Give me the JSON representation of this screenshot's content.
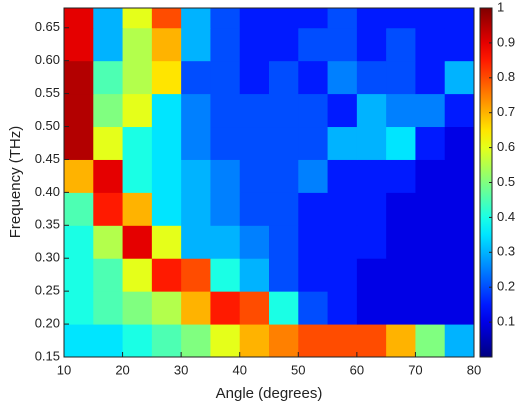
{
  "chart_data": {
    "type": "heatmap",
    "xlabel": "Angle (degrees)",
    "ylabel": "Frequency (THz)",
    "xbins": [
      10,
      15,
      20,
      25,
      30,
      35,
      40,
      45,
      50,
      55,
      60,
      65,
      70,
      75,
      80
    ],
    "ybins": [
      0.15,
      0.2,
      0.25,
      0.3,
      0.35,
      0.4,
      0.45,
      0.5,
      0.55,
      0.6,
      0.65,
      0.68
    ],
    "z": [
      [
        0.35,
        0.35,
        0.4,
        0.45,
        0.5,
        0.6,
        0.7,
        0.75,
        0.8,
        0.8,
        0.8,
        0.7,
        0.5,
        0.3
      ],
      [
        0.4,
        0.45,
        0.5,
        0.55,
        0.7,
        0.85,
        0.8,
        0.4,
        0.2,
        0.15,
        0.1,
        0.1,
        0.1,
        0.1
      ],
      [
        0.4,
        0.45,
        0.6,
        0.85,
        0.8,
        0.4,
        0.3,
        0.2,
        0.15,
        0.15,
        0.1,
        0.1,
        0.1,
        0.1
      ],
      [
        0.4,
        0.55,
        0.9,
        0.6,
        0.3,
        0.3,
        0.25,
        0.2,
        0.15,
        0.15,
        0.15,
        0.1,
        0.1,
        0.1
      ],
      [
        0.45,
        0.85,
        0.7,
        0.35,
        0.3,
        0.25,
        0.2,
        0.2,
        0.15,
        0.15,
        0.15,
        0.1,
        0.1,
        0.1
      ],
      [
        0.7,
        0.9,
        0.4,
        0.35,
        0.3,
        0.25,
        0.2,
        0.2,
        0.25,
        0.15,
        0.15,
        0.15,
        0.1,
        0.1
      ],
      [
        0.95,
        0.6,
        0.4,
        0.35,
        0.25,
        0.2,
        0.2,
        0.2,
        0.2,
        0.3,
        0.3,
        0.35,
        0.15,
        0.1
      ],
      [
        0.95,
        0.5,
        0.6,
        0.35,
        0.25,
        0.2,
        0.2,
        0.2,
        0.2,
        0.15,
        0.3,
        0.25,
        0.25,
        0.15
      ],
      [
        0.95,
        0.45,
        0.55,
        0.65,
        0.2,
        0.2,
        0.15,
        0.2,
        0.15,
        0.25,
        0.2,
        0.2,
        0.15,
        0.3
      ],
      [
        0.9,
        0.3,
        0.55,
        0.7,
        0.3,
        0.2,
        0.15,
        0.15,
        0.2,
        0.2,
        0.15,
        0.2,
        0.15,
        0.15
      ],
      [
        0.9,
        0.3,
        0.6,
        0.8,
        0.3,
        0.2,
        0.15,
        0.15,
        0.15,
        0.2,
        0.15,
        0.15,
        0.15,
        0.15
      ]
    ],
    "colormap": "jet",
    "xlim": [
      10,
      80
    ],
    "ylim": [
      0.15,
      0.68
    ],
    "clim": [
      0,
      1
    ],
    "xticks": [
      10,
      20,
      30,
      40,
      50,
      60,
      70,
      80
    ],
    "yticks": [
      0.15,
      {
        "value": 0.2,
        "label": "0.20"
      },
      0.25,
      {
        "value": 0.3,
        "label": "0.30"
      },
      0.35,
      {
        "value": 0.4,
        "label": "0.40"
      },
      0.45,
      {
        "value": 0.5,
        "label": "0.50"
      },
      0.55,
      {
        "value": 0.6,
        "label": "0.60"
      },
      0.65
    ],
    "cticks": [
      0.1,
      0.2,
      0.3,
      0.4,
      0.5,
      0.6,
      0.7,
      0.8,
      0.9,
      1
    ]
  }
}
